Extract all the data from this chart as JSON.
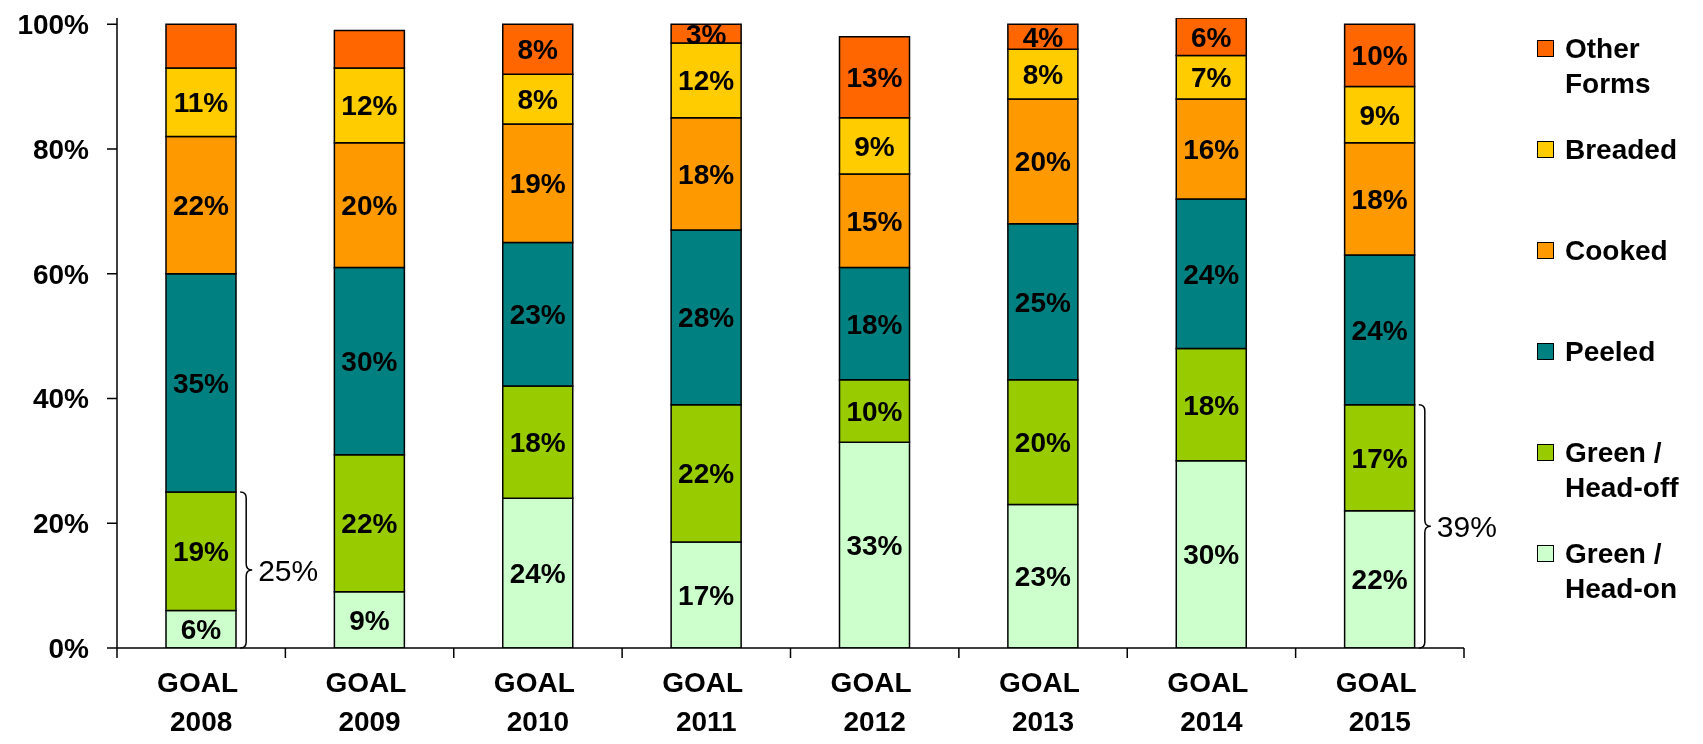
{
  "chart_data": {
    "type": "bar",
    "stacked": true,
    "categories": [
      "GOAL 2008",
      "GOAL 2009",
      "GOAL 2010",
      "GOAL 2011",
      "GOAL 2012",
      "GOAL 2013",
      "GOAL 2014",
      "GOAL 2015"
    ],
    "series": [
      {
        "name": "Green / Head-on",
        "color": "#ccffcc",
        "values": [
          6,
          9,
          24,
          17,
          33,
          23,
          30,
          22
        ],
        "value_labels": [
          "6%",
          "9%",
          "24%",
          "17%",
          "33%",
          "23%",
          "30%",
          "22%"
        ]
      },
      {
        "name": "Green / Head-off",
        "color": "#99cc00",
        "values": [
          19,
          22,
          18,
          22,
          10,
          20,
          18,
          17
        ],
        "value_labels": [
          "19%",
          "22%",
          "18%",
          "22%",
          "10%",
          "20%",
          "18%",
          "17%"
        ]
      },
      {
        "name": "Peeled",
        "color": "#008080",
        "values": [
          35,
          30,
          23,
          28,
          18,
          25,
          24,
          24
        ],
        "value_labels": [
          "35%",
          "30%",
          "23%",
          "28%",
          "18%",
          "25%",
          "24%",
          "24%"
        ]
      },
      {
        "name": "Cooked",
        "color": "#ff9900",
        "values": [
          22,
          20,
          19,
          18,
          15,
          20,
          16,
          18
        ],
        "value_labels": [
          "22%",
          "20%",
          "19%",
          "18%",
          "15%",
          "20%",
          "16%",
          "18%"
        ]
      },
      {
        "name": "Breaded",
        "color": "#ffcc00",
        "values": [
          11,
          12,
          8,
          12,
          9,
          8,
          7,
          9
        ],
        "value_labels": [
          "11%",
          "12%",
          "8%",
          "12%",
          "9%",
          "8%",
          "7%",
          "9%"
        ]
      },
      {
        "name": "Other Forms",
        "color": "#ff6600",
        "values": [
          7,
          6,
          8,
          3,
          13,
          4,
          6,
          10
        ],
        "value_labels": [
          null,
          null,
          "8%",
          "3%",
          "13%",
          "4%",
          "6%",
          "10%"
        ]
      }
    ],
    "ylim": [
      0,
      101
    ],
    "yticks": [
      {
        "value": 0,
        "label": "0%"
      },
      {
        "value": 20,
        "label": "20%"
      },
      {
        "value": 40,
        "label": "40%"
      },
      {
        "value": 60,
        "label": "60%"
      },
      {
        "value": 80,
        "label": "80%"
      },
      {
        "value": 100,
        "label": "100%"
      }
    ],
    "legend": "right",
    "annotations": [
      "25%",
      "39%"
    ]
  }
}
